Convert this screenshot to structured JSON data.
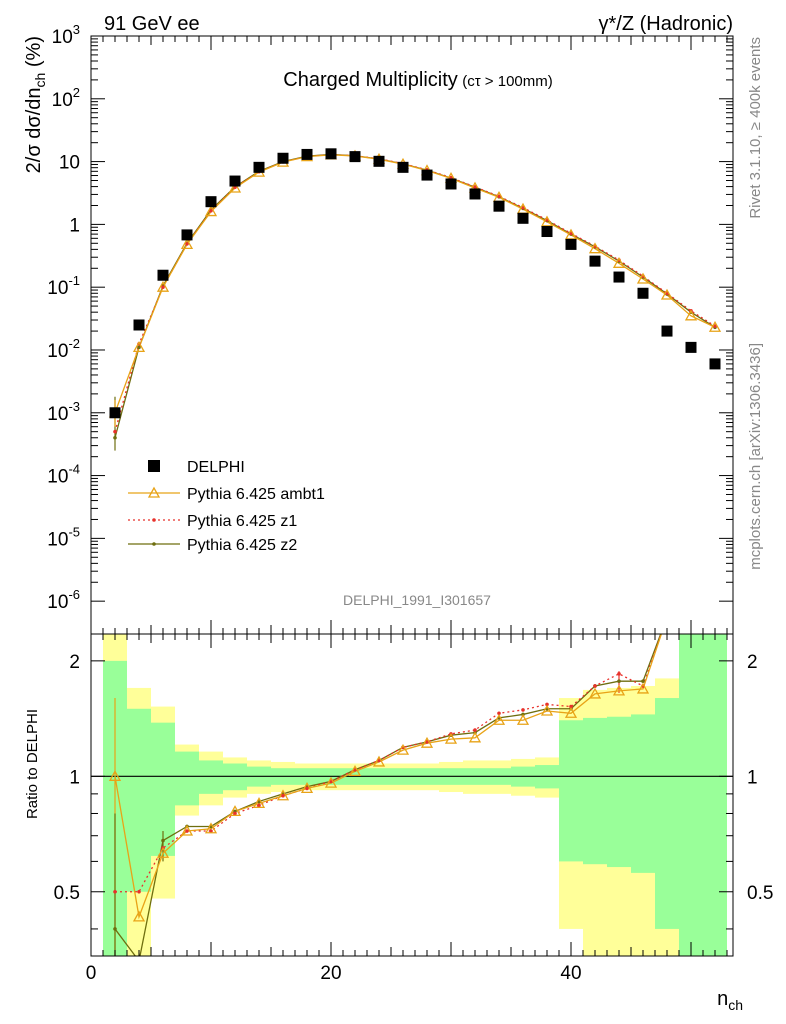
{
  "header": {
    "left": "91 GeV ee",
    "right": "γ*/Z (Hadronic)"
  },
  "side_labels": {
    "top": "Rivet 3.1.10, ≥ 400k events",
    "bottom": "mcplots.cern.ch [arXiv:1306.3436]"
  },
  "analysis_id": "DELPHI_1991_I301657",
  "chart_data": [
    {
      "type": "scatter",
      "title": "Charged Multiplicity",
      "title_note": "(cτ > 100mm)",
      "ylabel": "2/σ dσ/dn_ch (%)",
      "xlabel": "n_ch",
      "xlim": [
        0,
        53.5
      ],
      "ylim": [
        3e-07,
        1000
      ],
      "yscale": "log",
      "ytick_labels": [
        "10^-6",
        "10^-5",
        "10^-4",
        "10^-3",
        "10^-2",
        "10^-1",
        "1",
        "10",
        "10^2",
        "10^3"
      ],
      "legend_position": "bottom-left",
      "series": [
        {
          "name": "DELPHI",
          "color": "#000000",
          "marker": "square",
          "x": [
            2,
            4,
            6,
            8,
            10,
            12,
            14,
            16,
            18,
            20,
            22,
            24,
            26,
            28,
            30,
            32,
            34,
            36,
            38,
            40,
            42,
            44,
            46,
            48,
            50,
            52
          ],
          "y": [
            0.001,
            0.025,
            0.155,
            0.68,
            2.3,
            4.9,
            8.1,
            11.3,
            13.0,
            13.3,
            12.0,
            10.1,
            8.1,
            6.1,
            4.4,
            3.05,
            1.95,
            1.25,
            0.77,
            0.48,
            0.26,
            0.145,
            0.08,
            0.02,
            0.011,
            0.006
          ]
        },
        {
          "name": "Pythia 6.425 ambt1",
          "color": "#e8a317",
          "marker": "triangle",
          "x": [
            2,
            4,
            6,
            8,
            10,
            12,
            14,
            16,
            18,
            20,
            22,
            24,
            26,
            28,
            30,
            32,
            34,
            36,
            38,
            40,
            42,
            44,
            46,
            48,
            50,
            52
          ],
          "y": [
            0.001,
            0.011,
            0.1,
            0.48,
            1.6,
            3.8,
            6.8,
            9.8,
            12.0,
            12.8,
            12.3,
            10.9,
            9.1,
            7.2,
            5.4,
            3.8,
            2.7,
            1.75,
            1.1,
            0.68,
            0.41,
            0.24,
            0.135,
            0.075,
            0.035,
            0.023
          ]
        },
        {
          "name": "Pythia 6.425 z1",
          "color": "#e8312b",
          "marker": "dot",
          "line": "dotted",
          "x": [
            2,
            4,
            6,
            8,
            10,
            12,
            14,
            16,
            18,
            20,
            22,
            24,
            26,
            28,
            30,
            32,
            34,
            36,
            38,
            40,
            42,
            44,
            46,
            48,
            50,
            52
          ],
          "y": [
            0.0005,
            0.0125,
            0.1,
            0.49,
            1.65,
            3.9,
            6.9,
            9.9,
            12.1,
            12.9,
            12.4,
            11.1,
            9.3,
            7.4,
            5.55,
            3.95,
            2.8,
            1.85,
            1.18,
            0.72,
            0.45,
            0.27,
            0.15,
            0.08,
            0.042,
            0.024
          ]
        },
        {
          "name": "Pythia 6.425 z2",
          "color": "#6e6e0f",
          "marker": "dot",
          "line": "solid",
          "x": [
            2,
            4,
            6,
            8,
            10,
            12,
            14,
            16,
            18,
            20,
            22,
            24,
            26,
            28,
            30,
            32,
            34,
            36,
            38,
            40,
            42,
            44,
            46,
            48,
            50,
            52
          ],
          "y": [
            0.0004,
            0.011,
            0.105,
            0.5,
            1.7,
            3.95,
            7.0,
            10.0,
            12.2,
            13.0,
            12.4,
            11.0,
            9.2,
            7.3,
            5.45,
            3.9,
            2.75,
            1.8,
            1.15,
            0.7,
            0.44,
            0.26,
            0.145,
            0.078,
            0.04,
            0.023
          ]
        }
      ]
    },
    {
      "type": "line",
      "ylabel": "Ratio to DELPHI",
      "xlabel": "n_ch",
      "xlim": [
        0,
        53.5
      ],
      "ylim": [
        0.34,
        2.35
      ],
      "x_ticks": [
        0,
        20,
        40
      ],
      "y_ticks": [
        0.5,
        1,
        2
      ],
      "uncertainty_bands": {
        "edges": [
          1,
          3,
          5,
          7,
          9,
          11,
          13,
          15,
          17,
          19,
          21,
          23,
          25,
          27,
          29,
          31,
          33,
          35,
          37,
          39,
          41,
          43,
          45,
          47,
          49,
          51,
          53
        ],
        "inner_lo": [
          0,
          0.5,
          0.62,
          0.84,
          0.9,
          0.92,
          0.94,
          0.95,
          0.95,
          0.95,
          0.95,
          0.95,
          0.95,
          0.95,
          0.95,
          0.95,
          0.95,
          0.94,
          0.93,
          0.6,
          0.59,
          0.58,
          0.56,
          0.4,
          0.3,
          0.3
        ],
        "inner_hi": [
          2.0,
          1.5,
          1.38,
          1.16,
          1.1,
          1.08,
          1.06,
          1.05,
          1.05,
          1.05,
          1.05,
          1.05,
          1.05,
          1.05,
          1.05,
          1.05,
          1.05,
          1.06,
          1.07,
          1.4,
          1.42,
          1.43,
          1.45,
          1.6,
          2.5,
          2.5
        ],
        "outer_lo": [
          0,
          0.3,
          0.48,
          0.79,
          0.84,
          0.88,
          0.9,
          0.91,
          0.92,
          0.92,
          0.92,
          0.92,
          0.92,
          0.92,
          0.91,
          0.9,
          0.9,
          0.89,
          0.88,
          0.4,
          0.32,
          0.3,
          0.28,
          0.2,
          0.3,
          0.3
        ],
        "outer_hi": [
          2.5,
          1.7,
          1.52,
          1.21,
          1.16,
          1.12,
          1.1,
          1.09,
          1.08,
          1.08,
          1.08,
          1.08,
          1.08,
          1.08,
          1.09,
          1.1,
          1.1,
          1.11,
          1.12,
          1.6,
          1.68,
          1.7,
          1.72,
          1.8,
          2.5,
          1.88
        ]
      },
      "series": [
        {
          "name": "Pythia 6.425 ambt1",
          "color": "#e8a317",
          "x": [
            2,
            4,
            6,
            8,
            10,
            12,
            14,
            16,
            18,
            20,
            22,
            24,
            26,
            28,
            30,
            32,
            34,
            36,
            38,
            40,
            42,
            44,
            46,
            48
          ],
          "y": [
            1.0,
            0.43,
            0.63,
            0.72,
            0.73,
            0.81,
            0.85,
            0.89,
            0.93,
            0.96,
            1.03,
            1.09,
            1.17,
            1.22,
            1.25,
            1.26,
            1.4,
            1.4,
            1.48,
            1.46,
            1.64,
            1.67,
            1.69,
            2.6
          ]
        },
        {
          "name": "Pythia 6.425 z1",
          "color": "#e8312b",
          "x": [
            2,
            4,
            6,
            8,
            10,
            12,
            14,
            16,
            18,
            20,
            22,
            24,
            26,
            28,
            30,
            32,
            34,
            36,
            38,
            40,
            42,
            44,
            46,
            48
          ],
          "y": [
            0.5,
            0.5,
            0.65,
            0.72,
            0.72,
            0.8,
            0.84,
            0.89,
            0.93,
            0.97,
            1.04,
            1.1,
            1.19,
            1.23,
            1.29,
            1.32,
            1.46,
            1.49,
            1.54,
            1.52,
            1.72,
            1.85,
            1.72,
            2.6
          ]
        },
        {
          "name": "Pythia 6.425 z2",
          "color": "#6e6e0f",
          "x": [
            2,
            4,
            6,
            8,
            10,
            12,
            14,
            16,
            18,
            20,
            22,
            24,
            26,
            28,
            30,
            32,
            34,
            36,
            38,
            40,
            42,
            44,
            46,
            48
          ],
          "y": [
            0.4,
            0.33,
            0.68,
            0.74,
            0.74,
            0.81,
            0.86,
            0.9,
            0.94,
            0.97,
            1.04,
            1.1,
            1.19,
            1.23,
            1.28,
            1.3,
            1.42,
            1.45,
            1.5,
            1.5,
            1.72,
            1.77,
            1.77,
            2.6
          ]
        }
      ]
    }
  ]
}
